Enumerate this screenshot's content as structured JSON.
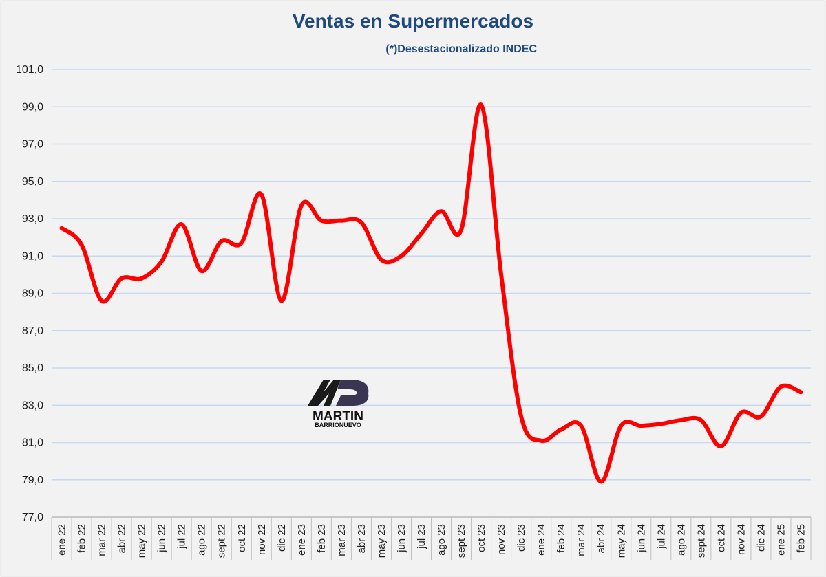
{
  "chart_data": {
    "type": "line",
    "title": "Ventas en Supermercados",
    "subtitle": "(*)Desestacionalizado INDEC",
    "categories": [
      "ene 22",
      "feb 22",
      "mar 22",
      "abr 22",
      "may 22",
      "jun 22",
      "jul 22",
      "ago 22",
      "sept 22",
      "oct 22",
      "nov 22",
      "dic 22",
      "ene 23",
      "feb 23",
      "mar 23",
      "abr 23",
      "may 23",
      "jun 23",
      "jul 23",
      "ago 23",
      "sept 23",
      "oct 23",
      "nov 23",
      "dic 23",
      "ene 24",
      "feb 24",
      "mar 24",
      "abr 24",
      "may 24",
      "jun 24",
      "jul 24",
      "ago 24",
      "sept 24",
      "oct 24",
      "nov 24",
      "dic 24",
      "ene 25",
      "feb 25"
    ],
    "series": [
      {
        "name": "Ventas en Supermercados",
        "color": "#ff0000",
        "values": [
          92.5,
          91.6,
          88.6,
          89.8,
          89.8,
          90.7,
          92.7,
          90.2,
          91.8,
          91.7,
          94.3,
          88.6,
          93.7,
          92.9,
          92.9,
          92.8,
          90.8,
          91.0,
          92.2,
          93.4,
          92.4,
          99.1,
          90.0,
          82.4,
          81.1,
          81.7,
          81.9,
          78.9,
          81.9,
          81.9,
          82.0,
          82.2,
          82.2,
          80.8,
          82.6,
          82.4,
          84.0,
          83.7
        ]
      }
    ],
    "ylim": [
      77,
      101
    ],
    "yticks": [
      {
        "value": 77,
        "label": "77,0"
      },
      {
        "value": 79,
        "label": "79,0"
      },
      {
        "value": 81,
        "label": "81,0"
      },
      {
        "value": 83,
        "label": "83,0"
      },
      {
        "value": 85,
        "label": "85,0"
      },
      {
        "value": 87,
        "label": "87,0"
      },
      {
        "value": 89,
        "label": "89,0"
      },
      {
        "value": 91,
        "label": "91,0"
      },
      {
        "value": 93,
        "label": "93,0"
      },
      {
        "value": 95,
        "label": "95,0"
      },
      {
        "value": 97,
        "label": "97,0"
      },
      {
        "value": 99,
        "label": "99,0"
      },
      {
        "value": 101,
        "label": "101,0"
      }
    ],
    "grid": true,
    "annotations": [
      "MARTIN",
      "BARRIONUEVO"
    ]
  }
}
